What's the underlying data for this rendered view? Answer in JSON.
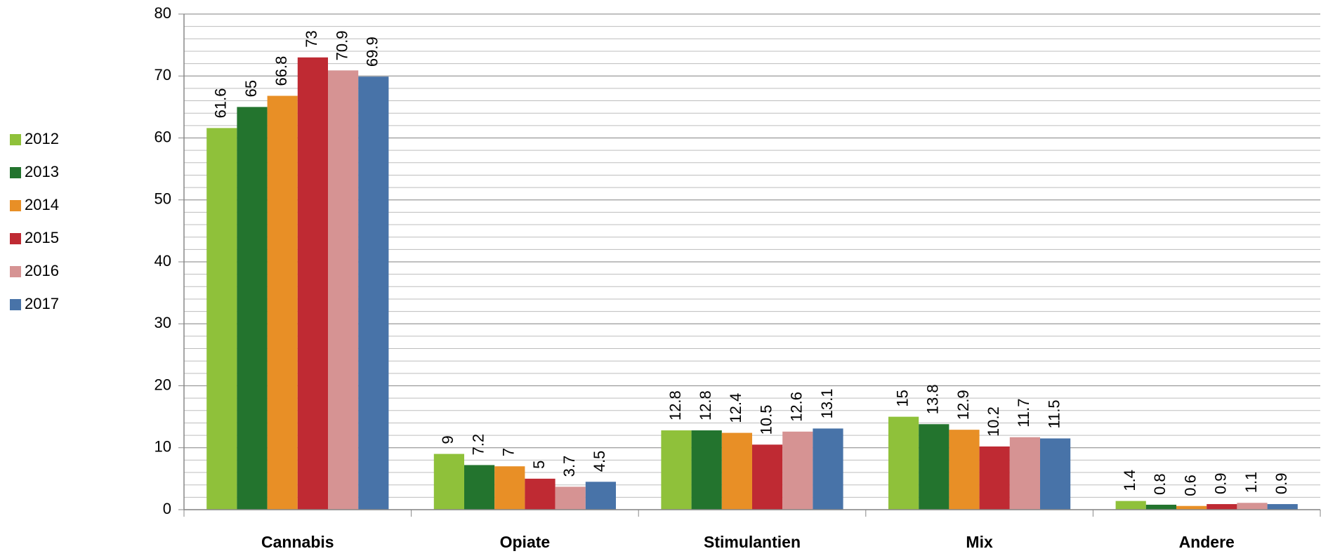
{
  "chart_data": {
    "type": "bar",
    "categories": [
      "Cannabis",
      "Opiate",
      "Stimulantien",
      "Mix",
      "Andere"
    ],
    "series": [
      {
        "name": "2012",
        "color": "#8fc13a",
        "values": [
          61.6,
          9,
          12.8,
          15,
          1.4
        ]
      },
      {
        "name": "2013",
        "color": "#23742e",
        "values": [
          65,
          7.2,
          12.8,
          13.8,
          0.8
        ]
      },
      {
        "name": "2014",
        "color": "#e88f26",
        "values": [
          66.8,
          7,
          12.4,
          12.9,
          0.6
        ]
      },
      {
        "name": "2015",
        "color": "#bf2a33",
        "values": [
          73,
          5,
          10.5,
          10.2,
          0.9
        ]
      },
      {
        "name": "2016",
        "color": "#d69393",
        "values": [
          70.9,
          3.7,
          12.6,
          11.7,
          1.1
        ]
      },
      {
        "name": "2017",
        "color": "#4873a8",
        "values": [
          69.9,
          4.5,
          13.1,
          11.5,
          0.9
        ]
      }
    ],
    "ylim": [
      0,
      80
    ],
    "yticks": [
      0,
      10,
      20,
      30,
      40,
      50,
      60,
      70,
      80
    ],
    "grid": true,
    "legend": "left"
  }
}
